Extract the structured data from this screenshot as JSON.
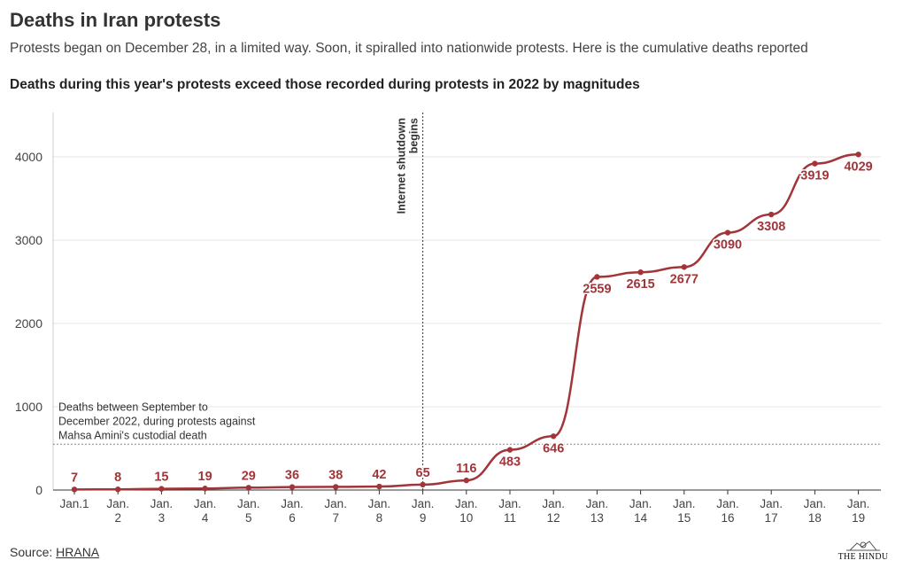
{
  "header": {
    "title": "Deaths in Iran protests",
    "subtitle": "Protests began on December 28, in a limited way. Soon, it spiralled into nationwide protests. Here is the cumulative deaths reported",
    "subhead": "Deaths during this year's protests exceed those recorded during protests in 2022 by magnitudes"
  },
  "footer": {
    "source_label": "Source: ",
    "source_link": "HRANA",
    "logo_text": "THE HINDU"
  },
  "colors": {
    "line": "#a23539",
    "grid": "#e6e6e6",
    "axis": "#333333",
    "annotation": "#333333"
  },
  "chart_data": {
    "type": "line",
    "title": "Deaths in Iran protests",
    "xlabel": "",
    "ylabel": "",
    "categories": [
      [
        "Jan.1"
      ],
      [
        "Jan.",
        "2"
      ],
      [
        "Jan.",
        "3"
      ],
      [
        "Jan.",
        "4"
      ],
      [
        "Jan.",
        "5"
      ],
      [
        "Jan.",
        "6"
      ],
      [
        "Jan.",
        "7"
      ],
      [
        "Jan.",
        "8"
      ],
      [
        "Jan.",
        "9"
      ],
      [
        "Jan.",
        "10"
      ],
      [
        "Jan.",
        "11"
      ],
      [
        "Jan.",
        "12"
      ],
      [
        "Jan.",
        "13"
      ],
      [
        "Jan.",
        "14"
      ],
      [
        "Jan.",
        "15"
      ],
      [
        "Jan.",
        "16"
      ],
      [
        "Jan.",
        "17"
      ],
      [
        "Jan.",
        "18"
      ],
      [
        "Jan.",
        "19"
      ]
    ],
    "series": [
      {
        "name": "Cumulative deaths",
        "values": [
          7,
          8,
          15,
          19,
          29,
          36,
          38,
          42,
          65,
          116,
          483,
          646,
          2559,
          2615,
          2677,
          3090,
          3308,
          3919,
          4029
        ]
      }
    ],
    "ylim": [
      0,
      4400
    ],
    "yticks": [
      0,
      1000,
      2000,
      3000,
      4000
    ],
    "grid": true,
    "annotations": {
      "shutdown": {
        "category_index": 8,
        "lines": [
          "Internet shutdown",
          "begins"
        ]
      },
      "reference": {
        "value": 550,
        "lines": [
          "Deaths between September to",
          "December 2022, during protests against",
          "Mahsa Amini's custodial death"
        ]
      }
    }
  }
}
